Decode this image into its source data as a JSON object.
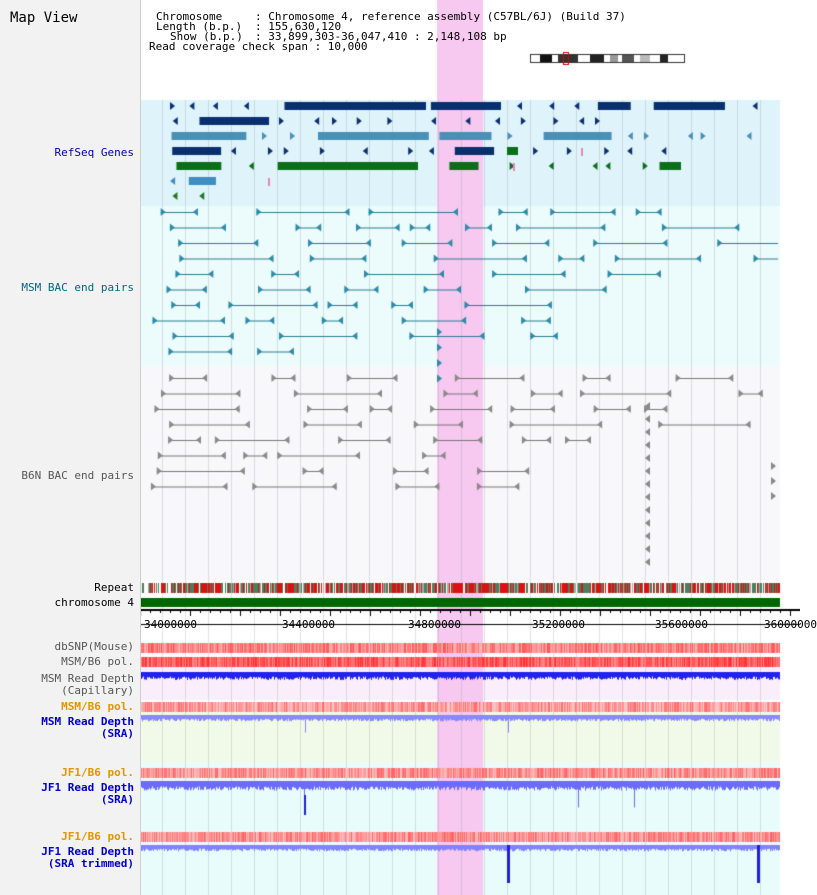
{
  "title": "Map View",
  "header": {
    "chromosome_key": "Chromosome",
    "chromosome_val": ": Chromosome 4, reference assembly (C57BL/6J) (Build 37)",
    "length_key": "Length (b.p.)",
    "length_val": ": 155,630,120",
    "show_key": "Show (b.p.)",
    "show_val": ": 33,899,303-36,047,410 : 2,148,108 bp",
    "coverage": "Read coverage check span : 10,000"
  },
  "tracks": {
    "refseq": "RefSeq Genes",
    "msm_bac": "MSM BAC end pairs",
    "b6n_bac": "B6N BAC end pairs",
    "repeat": "Repeat",
    "chromosome": "chromosome 4",
    "dbsnp": "dbSNP(Mouse)",
    "msm_b6_pol_1": "MSM/B6 pol.",
    "msm_read_depth_1": "MSM Read Depth",
    "msm_read_depth_1_sub": "(Capillary)",
    "msm_b6_pol_2": "MSM/B6 pol.",
    "msm_read_depth_2": "MSM Read Depth",
    "msm_read_depth_2_sub": "(SRA)",
    "jf1_b6_pol_1": "JF1/B6 pol.",
    "jf1_read_depth_1": "JF1 Read Depth",
    "jf1_read_depth_1_sub": "(SRA)",
    "jf1_b6_pol_2": "JF1/B6 pol.",
    "jf1_read_depth_2": "JF1 Read Depth",
    "jf1_read_depth_2_sub": "(SRA trimmed)"
  },
  "axis": {
    "ticks": [
      "34000000",
      "34400000",
      "34800000",
      "35200000",
      "35600000",
      "36000000"
    ]
  },
  "colors": {
    "refseq_label": "#0000aa",
    "msm_label": "#006680",
    "b6n_label": "#555555",
    "pol_label": "#e69500",
    "sra_label": "#0000cc",
    "highlight": "#f7c8f0",
    "chrom_bar": "#006600"
  }
}
